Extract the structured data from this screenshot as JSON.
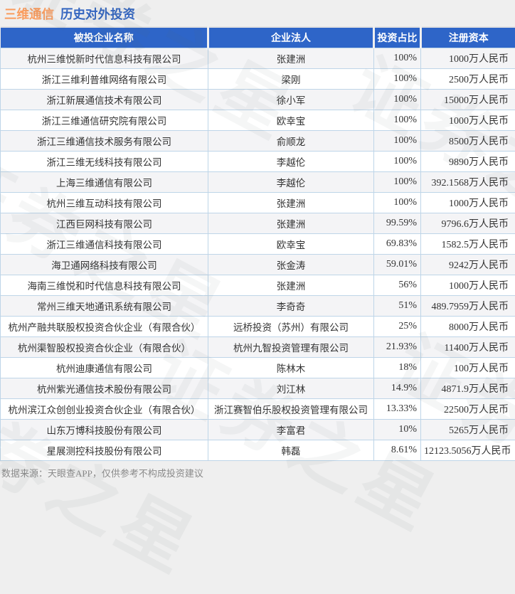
{
  "title": {
    "stock": "三维通信",
    "section": "历史对外投资"
  },
  "colors": {
    "accent_orange": "#fa9c5e",
    "title_blue": "#3566c0",
    "header_bg": "#2e65c8",
    "alt_row_bg": "#f4f4f6",
    "cell_border": "#bed5e8",
    "page_bg": "#efefef",
    "footer_gray": "#8a8a8a"
  },
  "watermark": {
    "text": "证券之星"
  },
  "footer": {
    "note": "数据来源：天眼查APP，仅供参考不构成投资建议"
  },
  "chart_data": {
    "type": "table",
    "title": "三维通信 历史对外投资",
    "columns": [
      "被投企业名称",
      "企业法人",
      "投资占比",
      "注册资本"
    ],
    "rows": [
      [
        "杭州三维悦新时代信息科技有限公司",
        "张建洲",
        "100%",
        "1000万人民币"
      ],
      [
        "浙江三维利普维网络有限公司",
        "梁刚",
        "100%",
        "2500万人民币"
      ],
      [
        "浙江新展通信技术有限公司",
        "徐小军",
        "100%",
        "15000万人民币"
      ],
      [
        "浙江三维通信研究院有限公司",
        "欧幸宝",
        "100%",
        "1000万人民币"
      ],
      [
        "浙江三维通信技术服务有限公司",
        "俞顺龙",
        "100%",
        "8500万人民币"
      ],
      [
        "浙江三维无线科技有限公司",
        "李越伦",
        "100%",
        "9890万人民币"
      ],
      [
        "上海三维通信有限公司",
        "李越伦",
        "100%",
        "392.1568万人民币"
      ],
      [
        "杭州三维互动科技有限公司",
        "张建洲",
        "100%",
        "1000万人民币"
      ],
      [
        "江西巨网科技有限公司",
        "张建洲",
        "99.59%",
        "9796.6万人民币"
      ],
      [
        "浙江三维通信科技有限公司",
        "欧幸宝",
        "69.83%",
        "1582.5万人民币"
      ],
      [
        "海卫通网络科技有限公司",
        "张金涛",
        "59.01%",
        "9242万人民币"
      ],
      [
        "海南三维悦和时代信息科技有限公司",
        "张建洲",
        "56%",
        "1000万人民币"
      ],
      [
        "常州三维天地通讯系统有限公司",
        "李奇奇",
        "51%",
        "489.7959万人民币"
      ],
      [
        "杭州产融共联股权投资合伙企业（有限合伙）",
        "远桥投资（苏州）有限公司",
        "25%",
        "8000万人民币"
      ],
      [
        "杭州渠智股权投资合伙企业（有限合伙）",
        "杭州九智投资管理有限公司",
        "21.93%",
        "11400万人民币"
      ],
      [
        "杭州迪康通信有限公司",
        "陈林木",
        "18%",
        "100万人民币"
      ],
      [
        "杭州紫光通信技术股份有限公司",
        "刘江林",
        "14.9%",
        "4871.9万人民币"
      ],
      [
        "杭州滨江众创创业投资合伙企业（有限合伙）",
        "浙江赛智伯乐股权投资管理有限公司",
        "13.33%",
        "22500万人民币"
      ],
      [
        "山东万博科技股份有限公司",
        "李富君",
        "10%",
        "5265万人民币"
      ],
      [
        "星展测控科技股份有限公司",
        "韩磊",
        "8.61%",
        "12123.5056万人民币"
      ]
    ]
  }
}
